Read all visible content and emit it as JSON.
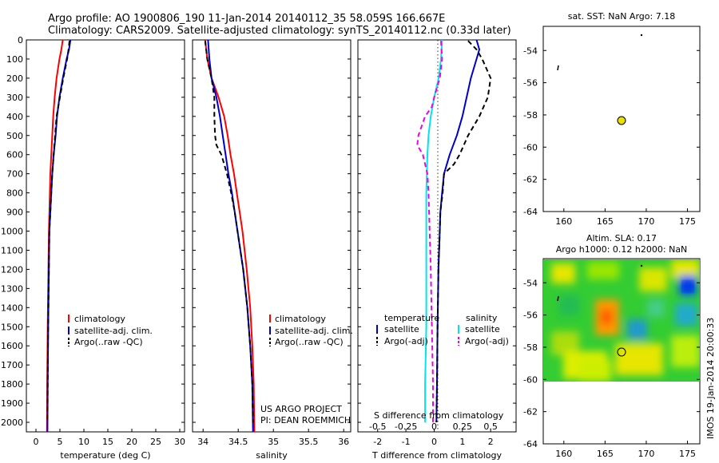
{
  "header": {
    "line1": "Argo profile: AO 1900806_190 11-Jan-2014 20140112_35 58.059S 166.667E",
    "line2": "Climatology: CARS2009. Satellite-adjusted climatology: synTS_20140112.nc (0.33d later)"
  },
  "depth_ticks": [
    "0",
    "100",
    "200",
    "300",
    "400",
    "500",
    "600",
    "700",
    "800",
    "900",
    "1000",
    "1100",
    "1200",
    "1300",
    "1400",
    "1500",
    "1600",
    "1700",
    "1800",
    "1900",
    "2000"
  ],
  "colors": {
    "climatology": "#ff0000",
    "satellite": "#0000cc",
    "argo": "#000000",
    "sal_satellite": "#00e5ee",
    "sal_argo": "#ee00ee",
    "marker": "#e8e000"
  },
  "panel_temp": {
    "xlabel": "temperature (deg C)",
    "xticks": [
      "0",
      "5",
      "10",
      "15",
      "20",
      "25",
      "30"
    ],
    "legend": [
      "climatology",
      "satellite-adj. clim.",
      "Argo(..raw -QC)"
    ]
  },
  "panel_sal": {
    "xlabel": "salinity",
    "xticks": [
      "34",
      "34.5",
      "35",
      "35.5",
      "36"
    ],
    "legend": [
      "climatology",
      "satellite-adj. clim.",
      "Argo(..raw -QC)"
    ],
    "project_line1": "US ARGO PROJECT",
    "project_line2": "PI: DEAN ROEMMICH"
  },
  "panel_diff": {
    "xlabel": "T difference from climatology",
    "xticks": [
      "-2",
      "-1",
      "0",
      "1",
      "2"
    ],
    "s_label": "S difference from climatology",
    "s_ticks": [
      "-0.5",
      "-0.25",
      "0",
      "0.25",
      "0.5"
    ],
    "legend_temp_title": "temperature",
    "legend_sal_title": "salinity",
    "legend_temp": [
      "satellite",
      "Argo(-adj)"
    ],
    "legend_sal": [
      "satellite",
      "Argo(-adj)"
    ]
  },
  "map1": {
    "title": "sat. SST: NaN Argo: 7.18",
    "yticks": [
      "-54",
      "-56",
      "-58",
      "-60",
      "-62",
      "-64"
    ],
    "xticks": [
      "160",
      "165",
      "170",
      "175"
    ]
  },
  "map2": {
    "title_line1": "Altim. SLA: 0.17",
    "title_line2": "Argo h1000: 0.12 h2000: NaN",
    "yticks": [
      "-54",
      "-56",
      "-58",
      "-60",
      "-62",
      "-64"
    ],
    "xticks": [
      "160",
      "165",
      "170",
      "175"
    ]
  },
  "stamp": "IMOS 19-Jan-2014 20:00:33",
  "chart_data": [
    {
      "type": "line",
      "name": "temperature profile",
      "xlabel": "temperature (deg C)",
      "ylabel": "",
      "xlim": [
        -2,
        31
      ],
      "ylim": [
        2050,
        0
      ],
      "series": [
        {
          "name": "climatology",
          "depth": [
            0,
            50,
            100,
            200,
            300,
            400,
            500,
            600,
            700,
            800,
            900,
            1000,
            1200,
            1500,
            1800,
            2050
          ],
          "values": [
            5.6,
            5.3,
            4.9,
            4.3,
            3.9,
            3.6,
            3.4,
            3.2,
            3.0,
            2.9,
            2.8,
            2.7,
            2.6,
            2.45,
            2.35,
            2.3
          ]
        },
        {
          "name": "satellite-adj. clim.",
          "depth": [
            0,
            50,
            100,
            200,
            300,
            400,
            500,
            600,
            700,
            800,
            900,
            1000,
            1200,
            1500,
            1800,
            2050
          ],
          "values": [
            7.2,
            6.9,
            6.4,
            5.6,
            4.9,
            4.4,
            4.1,
            3.7,
            3.4,
            3.2,
            3.0,
            2.8,
            2.7,
            2.55,
            2.45,
            2.4
          ]
        },
        {
          "name": "Argo(..raw -QC)",
          "depth": [
            5,
            50,
            100,
            200,
            300,
            400,
            500,
            600,
            700,
            800,
            900,
            1000,
            1200,
            1500,
            1800,
            2000
          ],
          "values": [
            7.0,
            6.8,
            6.5,
            5.7,
            5.0,
            4.3,
            4.0,
            3.7,
            3.4,
            3.2,
            3.0,
            2.8,
            2.7,
            2.55,
            2.45,
            2.4
          ]
        }
      ]
    },
    {
      "type": "line",
      "name": "salinity profile",
      "xlabel": "salinity",
      "ylabel": "",
      "xlim": [
        33.85,
        36.1
      ],
      "ylim": [
        2050,
        0
      ],
      "series": [
        {
          "name": "climatology",
          "depth": [
            0,
            100,
            200,
            300,
            400,
            500,
            600,
            700,
            800,
            900,
            1000,
            1200,
            1400,
            1600,
            1800,
            2050
          ],
          "values": [
            34.03,
            34.06,
            34.12,
            34.22,
            34.3,
            34.35,
            34.39,
            34.44,
            34.48,
            34.52,
            34.56,
            34.62,
            34.67,
            34.7,
            34.72,
            34.73
          ]
        },
        {
          "name": "satellite-adj. clim.",
          "depth": [
            0,
            100,
            200,
            300,
            400,
            500,
            600,
            700,
            800,
            900,
            1000,
            1200,
            1400,
            1600,
            1800,
            2050
          ],
          "values": [
            34.07,
            34.09,
            34.12,
            34.19,
            34.24,
            34.28,
            34.32,
            34.36,
            34.41,
            34.45,
            34.49,
            34.57,
            34.63,
            34.67,
            34.7,
            34.71
          ]
        },
        {
          "name": "Argo(..raw -QC)",
          "depth": [
            5,
            100,
            200,
            300,
            350,
            400,
            500,
            550,
            600,
            700,
            800,
            900,
            1000,
            1200,
            1400,
            1600,
            1800,
            2000
          ],
          "values": [
            34.03,
            34.06,
            34.12,
            34.16,
            34.16,
            34.16,
            34.17,
            34.19,
            34.26,
            34.34,
            34.4,
            34.45,
            34.49,
            34.57,
            34.63,
            34.67,
            34.7,
            34.71
          ]
        }
      ]
    },
    {
      "type": "line",
      "name": "difference from climatology",
      "xlabel": "T difference from climatology",
      "x2label": "S difference from climatology",
      "xlim": [
        -2.7,
        2.9
      ],
      "x2lim": [
        -0.675,
        0.725
      ],
      "ylim": [
        2050,
        0
      ],
      "series": [
        {
          "name": "temperature satellite",
          "depth": [
            0,
            50,
            100,
            200,
            300,
            400,
            500,
            600,
            700,
            800,
            900,
            1000,
            1200,
            1500,
            1800,
            2000
          ],
          "values": [
            1.5,
            1.6,
            1.5,
            1.3,
            1.15,
            1.0,
            0.8,
            0.55,
            0.35,
            0.28,
            0.22,
            0.2,
            0.15,
            0.12,
            0.1,
            0.08
          ]
        },
        {
          "name": "temperature Argo(-adj)",
          "depth": [
            5,
            50,
            100,
            200,
            300,
            400,
            500,
            600,
            650,
            700,
            800,
            900,
            1000,
            1200,
            1500,
            1800,
            2000
          ],
          "values": [
            1.2,
            1.5,
            1.7,
            2.0,
            1.9,
            1.6,
            1.2,
            0.9,
            0.7,
            0.35,
            0.3,
            0.22,
            0.2,
            0.15,
            0.12,
            0.1,
            0.08
          ]
        },
        {
          "name": "salinity satellite",
          "depth": [
            0,
            100,
            200,
            300,
            400,
            500,
            600,
            800,
            1000,
            1200,
            1500,
            1800,
            2000
          ],
          "values": [
            0.07,
            0.06,
            0.04,
            0.0,
            -0.03,
            -0.05,
            -0.06,
            -0.07,
            -0.07,
            -0.07,
            -0.07,
            -0.08,
            -0.08
          ]
        },
        {
          "name": "salinity Argo(-adj)",
          "depth": [
            5,
            100,
            200,
            300,
            350,
            400,
            500,
            550,
            600,
            700,
            800,
            1000,
            1200,
            1500,
            1800,
            2000
          ],
          "values": [
            0.06,
            0.07,
            0.05,
            0.0,
            -0.02,
            -0.08,
            -0.14,
            -0.15,
            -0.1,
            -0.06,
            -0.05,
            -0.04,
            -0.03,
            -0.02,
            -0.01,
            -0.01
          ]
        }
      ]
    },
    {
      "type": "scatter",
      "name": "location map",
      "xlim": [
        157.5,
        176.5
      ],
      "ylim": [
        -64,
        -52.5
      ],
      "points": [
        {
          "lon": 166.667,
          "lat": -58.059
        }
      ]
    },
    {
      "type": "heatmap",
      "name": "altimetry SLA map",
      "xlim": [
        157.5,
        176.5
      ],
      "ylim": [
        -64,
        -52.5
      ],
      "points": [
        {
          "lon": 166.667,
          "lat": -58.059
        }
      ]
    }
  ]
}
